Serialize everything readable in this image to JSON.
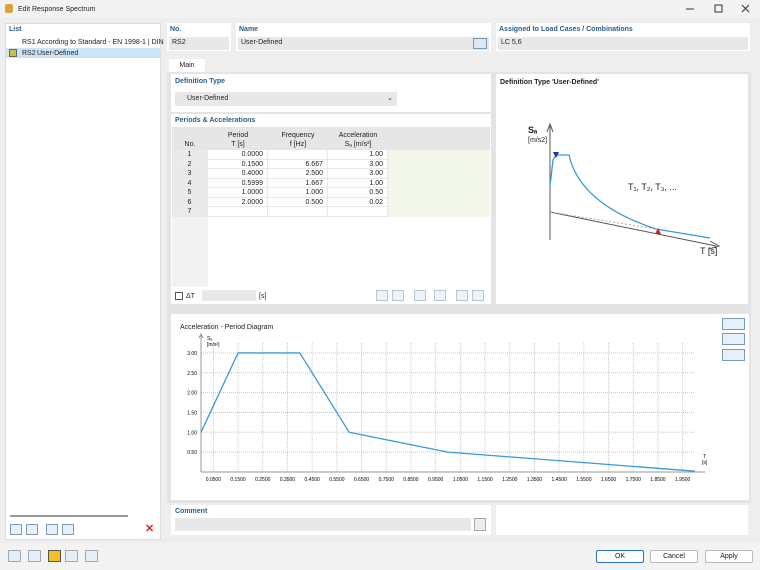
{
  "window": {
    "title": "Edit Response Spectrum"
  },
  "list": {
    "title": "List",
    "items": [
      {
        "id": "RS1",
        "label": "According to Standard - EN 1998-1 | DIN"
      },
      {
        "id": "RS2",
        "label": "User-Defined"
      }
    ]
  },
  "header": {
    "no_label": "No.",
    "no": "RS2",
    "name_label": "Name",
    "name": "User-Defined",
    "assigned_label": "Assigned to Load Cases / Combinations",
    "assigned": "LC 5,6"
  },
  "tabs": [
    "Main"
  ],
  "definition": {
    "title": "Definition Type",
    "value": "User-Defined"
  },
  "table": {
    "title": "Periods & Accelerations",
    "columns": [
      [
        "No."
      ],
      [
        "Period",
        "T [s]"
      ],
      [
        "Frequency",
        "f [Hz]"
      ],
      [
        "Acceleration",
        "Sₐ [m/s²]"
      ]
    ],
    "rows": [
      [
        "1",
        "0.0000",
        null,
        "1.00"
      ],
      [
        "2",
        "0.1500",
        "6.667",
        "3.00"
      ],
      [
        "3",
        "0.4000",
        "2.500",
        "3.00"
      ],
      [
        "4",
        "0.5999",
        "1.667",
        "1.00"
      ],
      [
        "5",
        "1.0000",
        "1.000",
        "0.50"
      ],
      [
        "6",
        "2.0000",
        "0.500",
        "0.02"
      ],
      [
        "7",
        null,
        null,
        null
      ]
    ]
  },
  "delta": {
    "label": "ΔT",
    "unit": "[s]"
  },
  "schematic": {
    "title": "Definition Type 'User-Defined'",
    "y_label": "Sₐ",
    "y_unit": "[m/s2]",
    "periods": "T₁, T₂, T₃, ...",
    "x_label": "T [s]"
  },
  "chart_data": {
    "type": "line",
    "title": "Acceleration - Period Diagram",
    "y_label": "Sₐ",
    "y_unit": "[m/s²]",
    "x_label": "T",
    "x_unit": "[s]",
    "x": [
      0,
      0.15,
      0.4,
      0.6,
      1.0,
      2.0
    ],
    "values": [
      1.0,
      3.0,
      3.0,
      1.0,
      0.5,
      0.02
    ],
    "color": "#3a9ad9",
    "grid": true,
    "xlim": [
      0,
      2.0
    ],
    "ylim": [
      0,
      3.25
    ],
    "xticks": [
      {
        "value": 0.05,
        "label": "0.0500"
      },
      {
        "value": 0.15,
        "label": "0.1500"
      },
      {
        "value": 0.25,
        "label": "0.2500"
      },
      {
        "value": 0.35,
        "label": "0.3500"
      },
      {
        "value": 0.45,
        "label": "0.4500"
      },
      {
        "value": 0.55,
        "label": "0.5500"
      },
      {
        "value": 0.65,
        "label": "0.6500"
      },
      {
        "value": 0.75,
        "label": "0.7500"
      },
      {
        "value": 0.85,
        "label": "0.8500"
      },
      {
        "value": 0.95,
        "label": "0.9500"
      },
      {
        "value": 1.05,
        "label": "1.0500"
      },
      {
        "value": 1.15,
        "label": "1.1500"
      },
      {
        "value": 1.25,
        "label": "1.2500"
      },
      {
        "value": 1.35,
        "label": "1.3500"
      },
      {
        "value": 1.45,
        "label": "1.4500"
      },
      {
        "value": 1.55,
        "label": "1.5500"
      },
      {
        "value": 1.65,
        "label": "1.6500"
      },
      {
        "value": 1.75,
        "label": "1.7500"
      },
      {
        "value": 1.85,
        "label": "1.8500"
      },
      {
        "value": 1.95,
        "label": "1.9500"
      }
    ],
    "yticks": [
      {
        "value": 0.5,
        "label": "0.50"
      },
      {
        "value": 1.0,
        "label": "1.00"
      },
      {
        "value": 1.5,
        "label": "1.50"
      },
      {
        "value": 2.0,
        "label": "2.00"
      },
      {
        "value": 2.5,
        "label": "2.50"
      },
      {
        "value": 3.0,
        "label": "3.00"
      }
    ]
  },
  "comment": {
    "title": "Comment"
  },
  "buttons": [
    "OK",
    "Cancel",
    "Apply"
  ]
}
